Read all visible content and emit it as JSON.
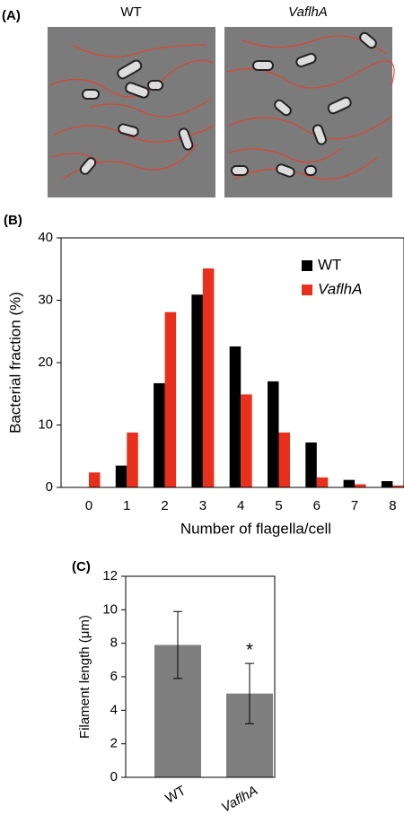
{
  "panel_a": {
    "label": "(A)",
    "titles": [
      "WT",
      "VaflhA"
    ]
  },
  "chart_data": [
    {
      "type": "grouped-bar",
      "panel_label": "(B)",
      "x_label": "Number of flagella/cell",
      "y_label": "Bacterial fraction (%)",
      "categories": [
        "0",
        "1",
        "2",
        "3",
        "4",
        "5",
        "6",
        "7",
        "8"
      ],
      "series": [
        {
          "name": "WT",
          "color": "#000000",
          "values": [
            0,
            3.5,
            16.7,
            30.9,
            22.6,
            17,
            7.2,
            1.2,
            1
          ]
        },
        {
          "name": "VaflhA",
          "color": "#e8301c",
          "values": [
            2.4,
            8.8,
            28.1,
            35.1,
            14.9,
            8.8,
            1.6,
            0.5,
            0.3
          ]
        }
      ],
      "ylim": [
        0,
        40
      ],
      "yticks": [
        0,
        10,
        20,
        30,
        40
      ],
      "legend": "top-right"
    },
    {
      "type": "bar-error",
      "panel_label": "(C)",
      "y_label": "Filament length (μm)",
      "categories": [
        "WT",
        "VaflhA"
      ],
      "values": [
        7.9,
        5.0
      ],
      "errors": [
        2.0,
        1.8
      ],
      "color": "#7f7f7f",
      "annotation": "*",
      "ylim": [
        0,
        12
      ],
      "yticks": [
        0,
        2,
        4,
        6,
        8,
        10,
        12
      ]
    }
  ]
}
